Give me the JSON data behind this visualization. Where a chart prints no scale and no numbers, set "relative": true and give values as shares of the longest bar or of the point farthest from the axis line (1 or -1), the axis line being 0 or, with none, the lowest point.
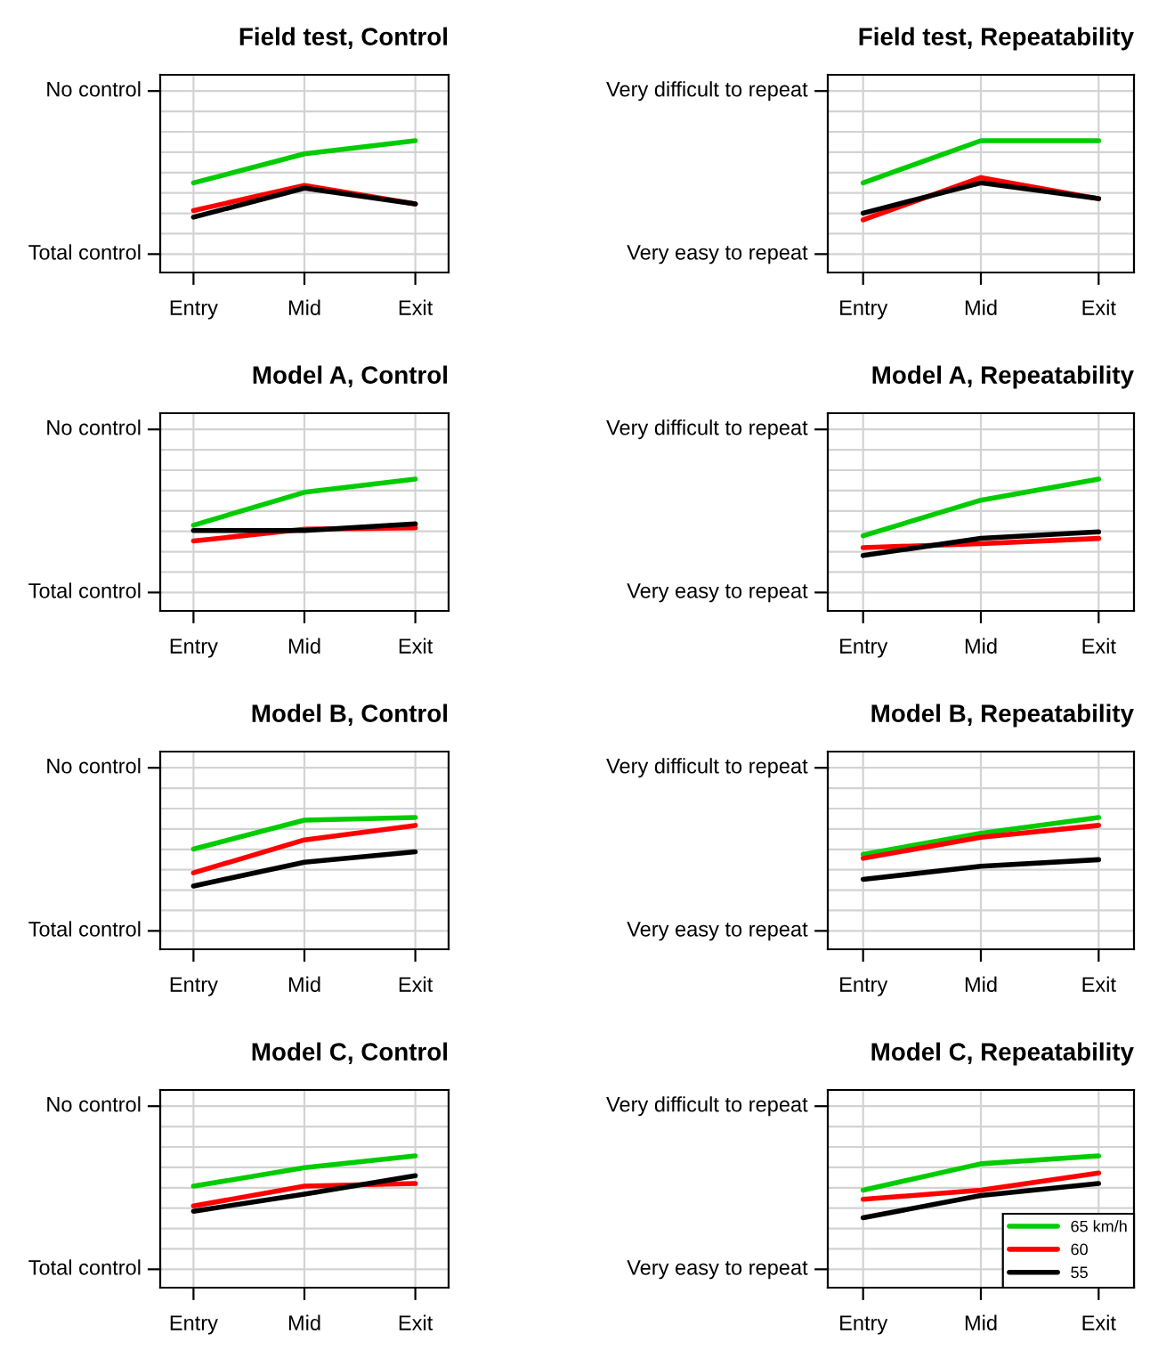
{
  "chart_data": [
    {
      "type": "line",
      "title": "Field test, Control",
      "categories": [
        "Entry",
        "Mid",
        "Exit"
      ],
      "relative": true,
      "annotations": [
        "Total control",
        "No control"
      ],
      "grid": true,
      "series": [
        {
          "color": "#00cc00",
          "values": [
            0.68,
            0.9,
            1.0
          ]
        },
        {
          "color": "#ff0000",
          "values": [
            0.47,
            0.66,
            0.52
          ]
        },
        {
          "color": "#000000",
          "values": [
            0.42,
            0.64,
            0.52
          ]
        }
      ]
    },
    {
      "type": "line",
      "title": "Field test, Repeatability",
      "categories": [
        "Entry",
        "Mid",
        "Exit"
      ],
      "relative": true,
      "annotations": [
        "Very easy to repeat",
        "Very difficult to repeat"
      ],
      "grid": true,
      "series": [
        {
          "color": "#00cc00",
          "values": [
            0.68,
            1.0,
            1.0
          ]
        },
        {
          "color": "#ff0000",
          "values": [
            0.4,
            0.72,
            0.56
          ]
        },
        {
          "color": "#000000",
          "values": [
            0.45,
            0.68,
            0.56
          ]
        }
      ]
    },
    {
      "type": "line",
      "title": "Model A, Control",
      "categories": [
        "Entry",
        "Mid",
        "Exit"
      ],
      "relative": true,
      "annotations": [
        "Total control",
        "No control"
      ],
      "grid": true,
      "series": [
        {
          "color": "#00cc00",
          "values": [
            0.65,
            0.9,
            1.0
          ]
        },
        {
          "color": "#ff0000",
          "values": [
            0.53,
            0.62,
            0.63
          ]
        },
        {
          "color": "#000000",
          "values": [
            0.61,
            0.61,
            0.66
          ]
        }
      ]
    },
    {
      "type": "line",
      "title": "Model A, Repeatability",
      "categories": [
        "Entry",
        "Mid",
        "Exit"
      ],
      "relative": true,
      "annotations": [
        "Very easy to repeat",
        "Very difficult to repeat"
      ],
      "grid": true,
      "series": [
        {
          "color": "#00cc00",
          "values": [
            0.57,
            0.84,
            1.0
          ]
        },
        {
          "color": "#ff0000",
          "values": [
            0.48,
            0.51,
            0.55
          ]
        },
        {
          "color": "#000000",
          "values": [
            0.42,
            0.55,
            0.6
          ]
        }
      ]
    },
    {
      "type": "line",
      "title": "Model B, Control",
      "categories": [
        "Entry",
        "Mid",
        "Exit"
      ],
      "relative": true,
      "annotations": [
        "Total control",
        "No control"
      ],
      "grid": true,
      "series": [
        {
          "color": "#00cc00",
          "values": [
            0.76,
            0.98,
            1.0
          ]
        },
        {
          "color": "#ff0000",
          "values": [
            0.58,
            0.83,
            0.94
          ]
        },
        {
          "color": "#000000",
          "values": [
            0.48,
            0.66,
            0.74
          ]
        }
      ]
    },
    {
      "type": "line",
      "title": "Model B, Repeatability",
      "categories": [
        "Entry",
        "Mid",
        "Exit"
      ],
      "relative": true,
      "annotations": [
        "Very easy to repeat",
        "Very difficult to repeat"
      ],
      "grid": true,
      "series": [
        {
          "color": "#00cc00",
          "values": [
            0.72,
            0.88,
            1.0
          ]
        },
        {
          "color": "#ff0000",
          "values": [
            0.69,
            0.85,
            0.94
          ]
        },
        {
          "color": "#000000",
          "values": [
            0.53,
            0.63,
            0.68
          ]
        }
      ]
    },
    {
      "type": "line",
      "title": "Model C, Control",
      "categories": [
        "Entry",
        "Mid",
        "Exit"
      ],
      "relative": true,
      "annotations": [
        "Total control",
        "No control"
      ],
      "grid": true,
      "series": [
        {
          "color": "#00cc00",
          "values": [
            0.77,
            0.91,
            1.0
          ]
        },
        {
          "color": "#ff0000",
          "values": [
            0.62,
            0.77,
            0.79
          ]
        },
        {
          "color": "#000000",
          "values": [
            0.58,
            0.71,
            0.85
          ]
        }
      ]
    },
    {
      "type": "line",
      "title": "Model C, Repeatability",
      "categories": [
        "Entry",
        "Mid",
        "Exit"
      ],
      "relative": true,
      "annotations": [
        "Very easy to repeat",
        "Very difficult to repeat"
      ],
      "grid": true,
      "legend": "bottom right",
      "series": [
        {
          "name": "65 km/h",
          "color": "#00cc00",
          "values": [
            0.74,
            0.94,
            1.0
          ]
        },
        {
          "name": "60",
          "color": "#ff0000",
          "values": [
            0.67,
            0.74,
            0.87
          ]
        },
        {
          "name": "55",
          "color": "#000000",
          "values": [
            0.53,
            0.7,
            0.79
          ]
        }
      ]
    }
  ]
}
